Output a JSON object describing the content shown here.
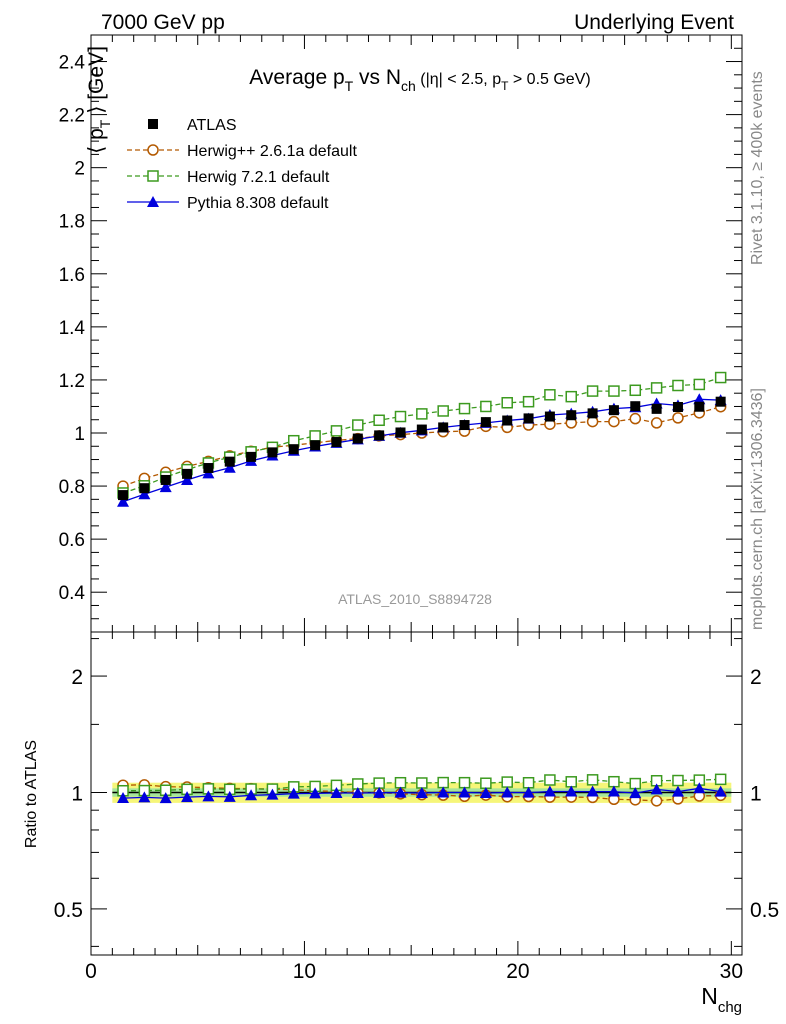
{
  "header": {
    "left": "7000 GeV pp",
    "right": "Underlying Event"
  },
  "side": {
    "top": "Rivet 3.1.10, ≥ 400k events",
    "bottom": "mcplots.cern.ch [arXiv:1306.3436]"
  },
  "watermark": "ATLAS_2010_S8894728",
  "chart_data": [
    {
      "type": "scatter",
      "title_parts": {
        "t1": "Average p",
        "t1sub": "T",
        "t2": " vs N",
        "t2sub": "ch",
        "t3": " (|η| < 2.5, p",
        "t3sub": "T",
        "t4": " > 0.5 GeV)"
      },
      "ylabel_parts": {
        "a": "⟨ p",
        "sub": "T",
        "b": " ⟩ [GeV]"
      },
      "xlim": [
        0,
        30.5
      ],
      "ylim": [
        0.25,
        2.5
      ],
      "yticks": [
        0.4,
        0.6,
        0.8,
        1,
        1.2,
        1.4,
        1.6,
        1.8,
        2,
        2.2,
        2.4
      ],
      "ytick_labels": [
        "0.4",
        "0.6",
        "0.8",
        "1",
        "1.2",
        "1.4",
        "1.6",
        "1.8",
        "2",
        "2.2",
        "2.4"
      ],
      "legend_position": "top-left",
      "grid": false,
      "x": [
        1.5,
        2.5,
        3.5,
        4.5,
        5.5,
        6.5,
        7.5,
        8.5,
        9.5,
        10.5,
        11.5,
        12.5,
        13.5,
        14.5,
        15.5,
        16.5,
        17.5,
        18.5,
        19.5,
        20.5,
        21.5,
        22.5,
        23.5,
        24.5,
        25.5,
        26.5,
        27.5,
        28.5,
        29.5
      ],
      "series": [
        {
          "name": "ATLAS",
          "color": "#000000",
          "marker": "filled-square",
          "line": "none",
          "values": [
            0.766,
            0.792,
            0.823,
            0.846,
            0.868,
            0.892,
            0.91,
            0.927,
            0.939,
            0.954,
            0.966,
            0.979,
            0.991,
            1.002,
            1.013,
            1.021,
            1.03,
            1.041,
            1.047,
            1.055,
            1.062,
            1.067,
            1.074,
            1.086,
            1.101,
            1.091,
            1.098,
            1.099,
            1.118
          ]
        },
        {
          "name": "Herwig++ 2.6.1a default",
          "color": "#b35900",
          "marker": "open-circle",
          "line": "dashed",
          "values": [
            0.8,
            0.829,
            0.852,
            0.874,
            0.893,
            0.914,
            0.931,
            0.946,
            0.954,
            0.963,
            0.972,
            0.979,
            0.989,
            0.994,
            1.0,
            1.005,
            1.007,
            1.025,
            1.021,
            1.03,
            1.033,
            1.038,
            1.043,
            1.043,
            1.054,
            1.038,
            1.057,
            1.076,
            1.099
          ]
        },
        {
          "name": "Herwig 7.2.1 default",
          "color": "#3c9a1f",
          "marker": "open-square",
          "line": "dashed",
          "values": [
            0.774,
            0.801,
            0.834,
            0.862,
            0.887,
            0.909,
            0.929,
            0.946,
            0.971,
            0.989,
            1.008,
            1.03,
            1.048,
            1.062,
            1.072,
            1.083,
            1.092,
            1.1,
            1.114,
            1.118,
            1.144,
            1.137,
            1.158,
            1.158,
            1.161,
            1.17,
            1.179,
            1.183,
            1.209
          ]
        },
        {
          "name": "Pythia 8.308 default",
          "color": "#0000dd",
          "marker": "filled-triangle",
          "line": "solid",
          "values": [
            0.741,
            0.769,
            0.796,
            0.823,
            0.848,
            0.869,
            0.895,
            0.915,
            0.933,
            0.949,
            0.963,
            0.976,
            0.989,
            1.001,
            1.01,
            1.021,
            1.03,
            1.038,
            1.047,
            1.054,
            1.068,
            1.073,
            1.08,
            1.092,
            1.097,
            1.111,
            1.104,
            1.127,
            1.124
          ]
        }
      ]
    },
    {
      "type": "scatter",
      "ylabel": "Ratio to ATLAS",
      "xlabel_parts": {
        "a": "N",
        "sub": "chg"
      },
      "xlim": [
        0,
        30.5
      ],
      "xticks": [
        0,
        10,
        20,
        30
      ],
      "xtick_labels": [
        "0",
        "10",
        "20",
        "30"
      ],
      "ylim": [
        0.38,
        2.6
      ],
      "yscale": "log",
      "yticks": [
        0.5,
        1,
        2
      ],
      "ytick_labels": [
        "0.5",
        "1",
        "2"
      ],
      "ytick_labels_right": [
        "0.5",
        "1",
        "2"
      ],
      "band": {
        "yellow_halfwidth": 0.06,
        "green_halfwidth": 0.025
      }
    }
  ]
}
